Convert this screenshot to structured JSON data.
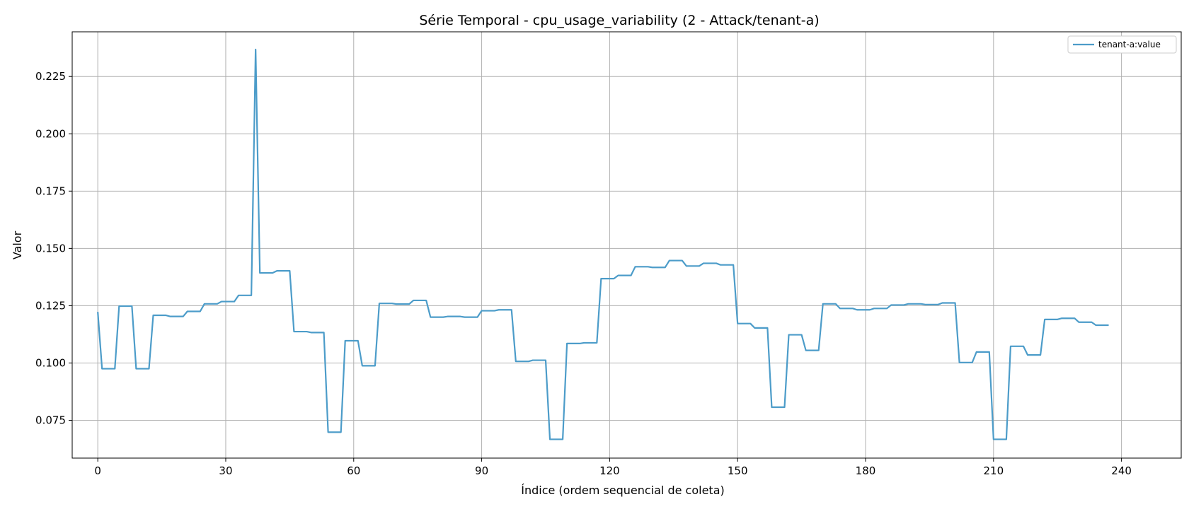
{
  "chart_data": {
    "type": "line",
    "title": "Série Temporal - cpu_usage_variability (2 - Attack/tenant-a)",
    "xlabel": "Índice (ordem sequencial de coleta)",
    "ylabel": "Valor",
    "xlim": [
      -6,
      254
    ],
    "ylim": [
      0.0585,
      0.2445
    ],
    "xticks": [
      0,
      30,
      60,
      90,
      120,
      150,
      180,
      210,
      240
    ],
    "xtick_labels": [
      "0",
      "30",
      "60",
      "90",
      "120",
      "150",
      "180",
      "210",
      "240"
    ],
    "yticks": [
      0.075,
      0.1,
      0.125,
      0.15,
      0.175,
      0.2,
      0.225
    ],
    "ytick_labels": [
      "0.075",
      "0.100",
      "0.125",
      "0.150",
      "0.175",
      "0.200",
      "0.225"
    ],
    "grid": true,
    "legend_position": "top-right",
    "series": [
      {
        "name": "tenant-a:value",
        "color": "#4c9cc9",
        "points": [
          [
            0,
            0.1223
          ],
          [
            1,
            0.0975
          ],
          [
            4,
            0.0975
          ],
          [
            5,
            0.1248
          ],
          [
            8,
            0.1248
          ],
          [
            9,
            0.0975
          ],
          [
            12,
            0.0975
          ],
          [
            13,
            0.1208
          ],
          [
            16,
            0.1208
          ],
          [
            17,
            0.1203
          ],
          [
            20,
            0.1203
          ],
          [
            21,
            0.1225
          ],
          [
            24,
            0.1225
          ],
          [
            25,
            0.1258
          ],
          [
            28,
            0.1258
          ],
          [
            29,
            0.1268
          ],
          [
            32,
            0.1268
          ],
          [
            33,
            0.1295
          ],
          [
            36,
            0.1295
          ],
          [
            37,
            0.2368
          ],
          [
            38,
            0.1393
          ],
          [
            41,
            0.1393
          ],
          [
            42,
            0.1402
          ],
          [
            45,
            0.1402
          ],
          [
            46,
            0.1137
          ],
          [
            49,
            0.1137
          ],
          [
            50,
            0.1133
          ],
          [
            53,
            0.1133
          ],
          [
            54,
            0.0698
          ],
          [
            57,
            0.0698
          ],
          [
            58,
            0.1097
          ],
          [
            61,
            0.1097
          ],
          [
            62,
            0.0988
          ],
          [
            65,
            0.0988
          ],
          [
            66,
            0.126
          ],
          [
            69,
            0.126
          ],
          [
            70,
            0.1257
          ],
          [
            73,
            0.1257
          ],
          [
            74,
            0.1273
          ],
          [
            77,
            0.1273
          ],
          [
            78,
            0.12
          ],
          [
            81,
            0.12
          ],
          [
            82,
            0.1203
          ],
          [
            85,
            0.1203
          ],
          [
            86,
            0.12
          ],
          [
            89,
            0.12
          ],
          [
            90,
            0.1228
          ],
          [
            93,
            0.1228
          ],
          [
            94,
            0.1232
          ],
          [
            97,
            0.1232
          ],
          [
            98,
            0.1007
          ],
          [
            101,
            0.1007
          ],
          [
            102,
            0.1012
          ],
          [
            105,
            0.1012
          ],
          [
            106,
            0.0667
          ],
          [
            109,
            0.0667
          ],
          [
            110,
            0.1085
          ],
          [
            113,
            0.1085
          ],
          [
            114,
            0.1088
          ],
          [
            117,
            0.1088
          ],
          [
            118,
            0.1368
          ],
          [
            121,
            0.1368
          ],
          [
            122,
            0.1382
          ],
          [
            125,
            0.1382
          ],
          [
            126,
            0.142
          ],
          [
            129,
            0.142
          ],
          [
            130,
            0.1417
          ],
          [
            133,
            0.1417
          ],
          [
            134,
            0.1447
          ],
          [
            137,
            0.1447
          ],
          [
            138,
            0.1423
          ],
          [
            141,
            0.1423
          ],
          [
            142,
            0.1435
          ],
          [
            145,
            0.1435
          ],
          [
            146,
            0.1428
          ],
          [
            149,
            0.1428
          ],
          [
            150,
            0.1172
          ],
          [
            153,
            0.1172
          ],
          [
            154,
            0.1153
          ],
          [
            157,
            0.1153
          ],
          [
            158,
            0.0807
          ],
          [
            161,
            0.0807
          ],
          [
            162,
            0.1123
          ],
          [
            165,
            0.1123
          ],
          [
            166,
            0.1055
          ],
          [
            169,
            0.1055
          ],
          [
            170,
            0.1258
          ],
          [
            173,
            0.1258
          ],
          [
            174,
            0.1238
          ],
          [
            177,
            0.1238
          ],
          [
            178,
            0.1232
          ],
          [
            181,
            0.1232
          ],
          [
            182,
            0.1238
          ],
          [
            185,
            0.1238
          ],
          [
            186,
            0.1253
          ],
          [
            189,
            0.1253
          ],
          [
            190,
            0.1258
          ],
          [
            193,
            0.1258
          ],
          [
            194,
            0.1255
          ],
          [
            197,
            0.1255
          ],
          [
            198,
            0.1262
          ],
          [
            201,
            0.1262
          ],
          [
            202,
            0.1002
          ],
          [
            205,
            0.1002
          ],
          [
            206,
            0.1048
          ],
          [
            209,
            0.1048
          ],
          [
            210,
            0.0667
          ],
          [
            213,
            0.0667
          ],
          [
            214,
            0.1073
          ],
          [
            217,
            0.1073
          ],
          [
            218,
            0.1035
          ],
          [
            221,
            0.1035
          ],
          [
            222,
            0.119
          ],
          [
            225,
            0.119
          ],
          [
            226,
            0.1195
          ],
          [
            229,
            0.1195
          ],
          [
            230,
            0.1178
          ],
          [
            233,
            0.1178
          ],
          [
            234,
            0.1165
          ],
          [
            237,
            0.1165
          ]
        ]
      }
    ]
  }
}
